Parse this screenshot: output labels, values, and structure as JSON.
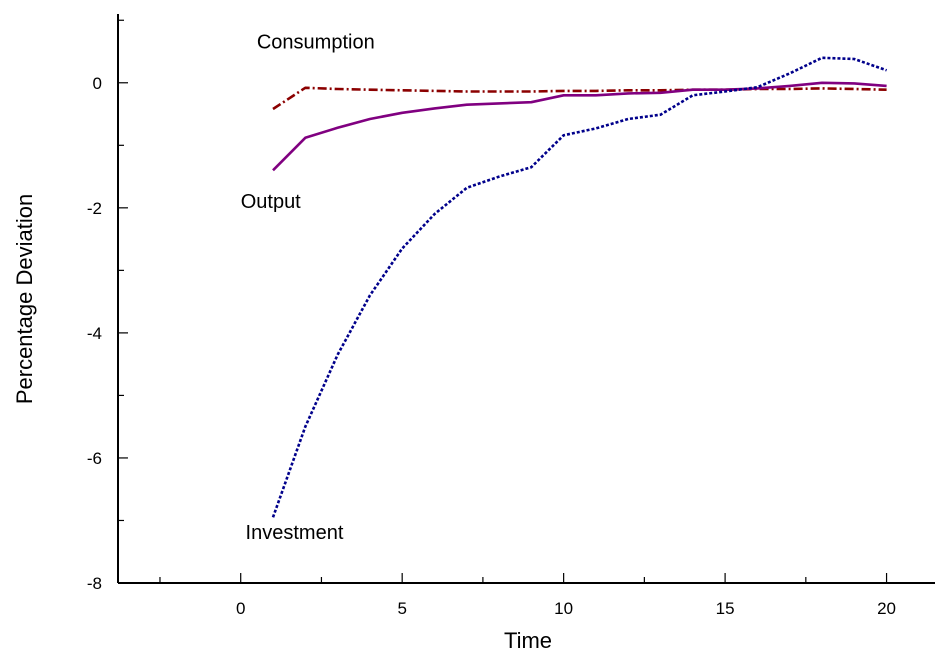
{
  "chart_data": {
    "type": "line",
    "title": "",
    "xlabel": "Time",
    "ylabel": "Percentage Deviation",
    "xlim": [
      -3.8,
      21.5
    ],
    "ylim": [
      -8,
      1.1
    ],
    "grid": false,
    "x_ticks": [
      0,
      5,
      10,
      15,
      20
    ],
    "y_ticks": [
      0,
      -2,
      -4,
      -6,
      -8
    ],
    "annotations": [
      {
        "text": "Consumption",
        "x": 0.5,
        "y": 0.55
      },
      {
        "text": "Output",
        "x": 0.0,
        "y": -2.0
      },
      {
        "text": "Investment",
        "x": 0.15,
        "y": -7.3
      }
    ],
    "series": [
      {
        "name": "Consumption",
        "style": "dash-dot",
        "color": "#8b0000",
        "x": [
          1,
          2,
          3,
          4,
          5,
          6,
          7,
          8,
          9,
          10,
          11,
          12,
          13,
          14,
          15,
          16,
          17,
          18,
          19,
          20
        ],
        "y": [
          -0.42,
          -0.08,
          -0.1,
          -0.11,
          -0.12,
          -0.13,
          -0.14,
          -0.14,
          -0.14,
          -0.13,
          -0.13,
          -0.12,
          -0.12,
          -0.11,
          -0.11,
          -0.1,
          -0.1,
          -0.09,
          -0.1,
          -0.11
        ]
      },
      {
        "name": "Output",
        "style": "solid",
        "color": "#800080",
        "x": [
          1,
          2,
          3,
          4,
          5,
          6,
          7,
          8,
          9,
          10,
          11,
          12,
          13,
          14,
          15,
          16,
          17,
          18,
          19,
          20
        ],
        "y": [
          -1.4,
          -0.88,
          -0.72,
          -0.58,
          -0.48,
          -0.41,
          -0.35,
          -0.33,
          -0.31,
          -0.2,
          -0.2,
          -0.17,
          -0.16,
          -0.11,
          -0.11,
          -0.09,
          -0.05,
          0.0,
          -0.01,
          -0.05
        ]
      },
      {
        "name": "Investment",
        "style": "dotted",
        "color": "#00008b",
        "x": [
          1,
          2,
          3,
          4,
          5,
          6,
          7,
          8,
          9,
          10,
          11,
          12,
          13,
          14,
          15,
          16,
          17,
          18,
          19,
          20
        ],
        "y": [
          -6.95,
          -5.5,
          -4.35,
          -3.4,
          -2.65,
          -2.1,
          -1.68,
          -1.5,
          -1.35,
          -0.84,
          -0.73,
          -0.58,
          -0.51,
          -0.2,
          -0.14,
          -0.07,
          0.15,
          0.4,
          0.38,
          0.2
        ]
      }
    ]
  }
}
